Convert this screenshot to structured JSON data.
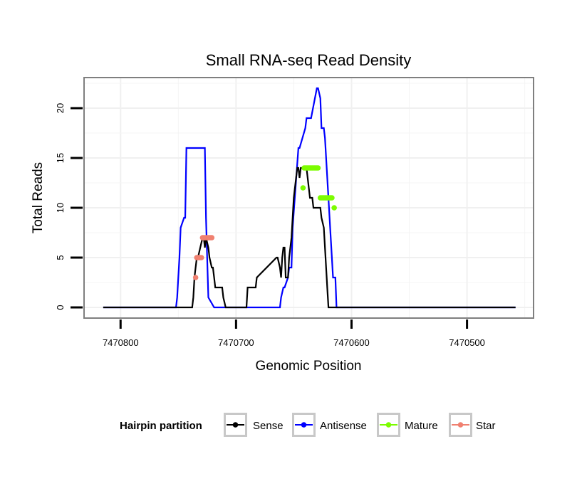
{
  "chart_data": {
    "type": "line",
    "title": "Small RNA-seq Read Density",
    "xlabel": "Genomic Position",
    "ylabel": "Total Reads",
    "x_reversed": true,
    "xlim": [
      7470831,
      7470443
    ],
    "ylim": [
      -1,
      23
    ],
    "x_ticks": [
      7470800,
      7470700,
      7470600,
      7470500
    ],
    "x_tick_labels": [
      "7470800",
      "7470700",
      "7470600",
      "7470500"
    ],
    "y_ticks": [
      0,
      5,
      10,
      15,
      20
    ],
    "y_tick_labels": [
      "0",
      "5",
      "10",
      "15",
      "20"
    ],
    "grid": true,
    "legend": {
      "title": "Hairpin partition",
      "placement": "bottom",
      "entries": [
        {
          "name": "Sense",
          "color": "#000000"
        },
        {
          "name": "Antisense",
          "color": "#0000ff"
        },
        {
          "name": "Mature",
          "color": "#7cfc00"
        },
        {
          "name": "Star",
          "color": "#f08070"
        }
      ]
    },
    "series": [
      {
        "name": "Sense",
        "color": "#000000",
        "mode": "line",
        "x": [
          7470815,
          7470738,
          7470737,
          7470736,
          7470735,
          7470734,
          7470733,
          7470731,
          7470729,
          7470728,
          7470727,
          7470726,
          7470724,
          7470723,
          7470721,
          7470720,
          7470719,
          7470718,
          7470716,
          7470715,
          7470712,
          7470711,
          7470709,
          7470708,
          7470700,
          7470700,
          7470691,
          7470690,
          7470683,
          7470682,
          7470665,
          7470664,
          7470662,
          7470661,
          7470660,
          7470659,
          7470658,
          7470657,
          7470655,
          7470654,
          7470652,
          7470651,
          7470650,
          7470649,
          7470647,
          7470646,
          7470645,
          7470644,
          7470639,
          7470638,
          7470637,
          7470636,
          7470634,
          7470633,
          7470627,
          7470626,
          7470624,
          7470623,
          7470622,
          7470621,
          7470620,
          7470619,
          7470540,
          7470458
        ],
        "y": [
          0,
          0,
          1,
          3,
          4,
          5,
          5,
          6,
          7,
          7,
          6,
          7,
          6,
          5,
          4,
          4,
          3,
          2,
          2,
          2,
          2,
          1,
          0,
          0,
          0,
          0,
          0,
          2,
          2,
          3,
          5,
          5,
          4,
          3,
          5,
          6,
          6,
          3,
          3,
          5,
          7,
          9,
          11,
          12,
          14,
          14,
          13,
          14,
          14,
          13,
          12,
          11,
          11,
          10,
          10,
          9,
          8,
          6,
          4,
          2,
          0,
          0,
          0,
          0
        ]
      },
      {
        "name": "Antisense",
        "color": "#0000ff",
        "mode": "line",
        "x": [
          7470815,
          7470752,
          7470751,
          7470750,
          7470749,
          7470748,
          7470745,
          7470744,
          7470743,
          7470730,
          7470727,
          7470726,
          7470725,
          7470724,
          7470719,
          7470718,
          7470670,
          7470662,
          7470661,
          7470659,
          7470658,
          7470655,
          7470654,
          7470652,
          7470651,
          7470646,
          7470645,
          7470640,
          7470639,
          7470636,
          7470635,
          7470630,
          7470629,
          7470627,
          7470626,
          7470625,
          7470624,
          7470623,
          7470617,
          7470616,
          7470615,
          7470614,
          7470613,
          7470458
        ],
        "y": [
          0,
          0,
          1,
          3,
          5,
          8,
          9,
          9,
          16,
          16,
          16,
          9,
          5,
          1,
          0,
          0,
          0,
          0,
          1,
          2,
          2,
          3,
          4,
          4,
          8,
          16,
          16,
          18,
          19,
          19,
          19,
          22,
          22,
          21,
          18,
          18,
          18,
          17,
          5,
          3,
          3,
          3,
          0,
          0
        ]
      },
      {
        "name": "Mature",
        "color": "#7cfc00",
        "mode": "points",
        "x": [
          7470642,
          7470641,
          7470640,
          7470639,
          7470638,
          7470637,
          7470636,
          7470635,
          7470634,
          7470633,
          7470632,
          7470631,
          7470630,
          7470629,
          7470627,
          7470626,
          7470625,
          7470624,
          7470623,
          7470622,
          7470621,
          7470620,
          7470619,
          7470618,
          7470617,
          7470615
        ],
        "y": [
          12,
          14,
          14,
          14,
          14,
          14,
          14,
          14,
          14,
          14,
          14,
          14,
          14,
          14,
          11,
          11,
          11,
          11,
          11,
          11,
          11,
          11,
          11,
          11,
          11,
          10
        ]
      },
      {
        "name": "Star",
        "color": "#f08070",
        "mode": "points",
        "x": [
          7470735,
          7470734,
          7470733,
          7470732,
          7470731,
          7470730,
          7470729,
          7470728,
          7470727,
          7470726,
          7470725,
          7470724,
          7470723,
          7470722,
          7470721
        ],
        "y": [
          3,
          5,
          5,
          5,
          5,
          5,
          7,
          7,
          7,
          7,
          7,
          7,
          7,
          7,
          7
        ]
      }
    ]
  }
}
